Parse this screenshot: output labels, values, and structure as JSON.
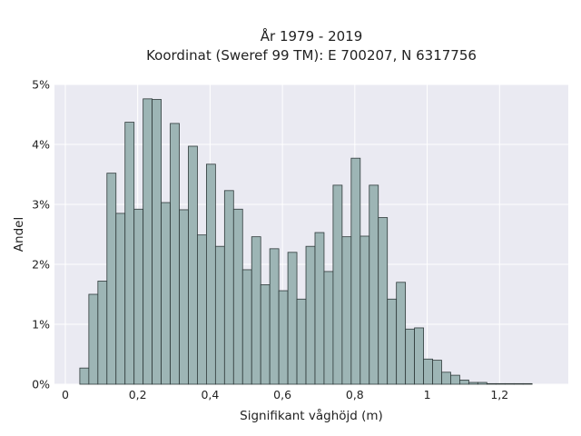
{
  "chart_data": {
    "type": "bar",
    "title": [
      "År 1979 - 2019",
      "Koordinat (Sweref 99 TM): E 700207, N 6317756"
    ],
    "xlabel": "Signifikant våghöjd (m)",
    "ylabel": "Andel",
    "xlim": [
      -0.03,
      1.39
    ],
    "ylim": [
      0,
      5
    ],
    "x_ticks": [
      0,
      0.2,
      0.4,
      0.6,
      0.8,
      1,
      1.2
    ],
    "x_tick_labels": [
      "0",
      "0,2",
      "0,4",
      "0,6",
      "0,8",
      "1",
      "1,2"
    ],
    "y_ticks": [
      0,
      1,
      2,
      3,
      4,
      5
    ],
    "y_tick_labels": [
      "0%",
      "1%",
      "2%",
      "3%",
      "4%",
      "5%"
    ],
    "bin_width": 0.025,
    "bin_starts": [
      0.04,
      0.065,
      0.09,
      0.115,
      0.14,
      0.165,
      0.19,
      0.215,
      0.24,
      0.265,
      0.29,
      0.315,
      0.34,
      0.365,
      0.39,
      0.415,
      0.44,
      0.465,
      0.49,
      0.515,
      0.54,
      0.565,
      0.59,
      0.615,
      0.64,
      0.665,
      0.69,
      0.715,
      0.74,
      0.765,
      0.79,
      0.815,
      0.84,
      0.865,
      0.89,
      0.915,
      0.94,
      0.965,
      0.99,
      1.015,
      1.04,
      1.065,
      1.09,
      1.115,
      1.14,
      1.165,
      1.19,
      1.215,
      1.24,
      1.265
    ],
    "values": [
      0.27,
      1.5,
      1.72,
      3.52,
      2.85,
      4.37,
      2.92,
      4.76,
      4.75,
      3.03,
      4.35,
      2.91,
      3.97,
      2.49,
      3.67,
      2.3,
      3.23,
      2.92,
      1.91,
      2.46,
      1.66,
      2.26,
      1.56,
      2.2,
      1.42,
      2.3,
      2.53,
      1.88,
      3.32,
      2.46,
      3.77,
      2.47,
      3.32,
      2.78,
      1.42,
      1.7,
      0.92,
      0.94,
      0.42,
      0.4,
      0.2,
      0.15,
      0.07,
      0.03,
      0.03,
      0.01,
      0.01,
      0.01,
      0.01,
      0.01
    ],
    "bar_color": "#9db5b5",
    "edge_color": "#2f3a3a",
    "background_color": "#eaeaf2",
    "grid": true
  }
}
